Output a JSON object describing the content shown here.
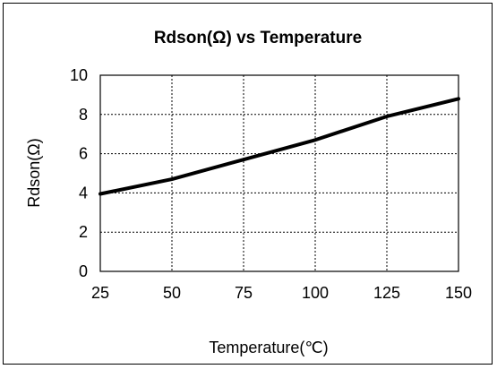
{
  "chart_data": {
    "type": "line",
    "title": "Rdson(Ω) vs Temperature",
    "xlabel": "Temperature(℃)",
    "ylabel": "Rdson(Ω)",
    "xlim": [
      25,
      150
    ],
    "ylim": [
      0,
      10
    ],
    "grid": true,
    "x_ticks": [
      "25",
      "50",
      "75",
      "100",
      "125",
      "150"
    ],
    "y_ticks": [
      "0",
      "2",
      "4",
      "6",
      "8",
      "10"
    ],
    "series": [
      {
        "x": [
          25,
          50,
          75,
          100,
          125,
          150
        ],
        "values": [
          3.95,
          4.7,
          5.7,
          6.7,
          7.9,
          8.8
        ],
        "color": "#000000"
      }
    ]
  }
}
